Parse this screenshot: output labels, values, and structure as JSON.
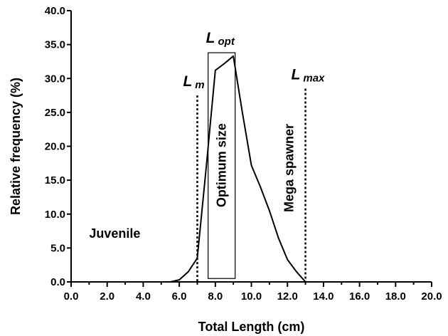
{
  "chart_data": {
    "type": "line",
    "xlabel": "Total Length (cm)",
    "ylabel": "Relative frequency (%)",
    "xlim": [
      0,
      20
    ],
    "ylim": [
      0,
      40
    ],
    "x_ticks": [
      "0.0",
      "2.0",
      "4.0",
      "6.0",
      "8.0",
      "10.0",
      "12.0",
      "14.0",
      "16.0",
      "18.0",
      "20.0"
    ],
    "y_ticks": [
      "0.0",
      "5.0",
      "10.0",
      "15.0",
      "20.0",
      "25.0",
      "30.0",
      "35.0",
      "40.0"
    ],
    "grid": false,
    "series": [
      {
        "x": [
          0,
          0.5,
          1,
          1.5,
          2,
          2.5,
          3,
          3.5,
          4,
          4.5,
          5,
          5.5,
          6,
          6.5,
          7,
          7.5,
          8,
          8.5,
          9,
          9.5,
          10,
          10.5,
          11,
          11.5,
          12,
          12.5,
          13,
          13.5,
          14,
          14.5,
          15,
          15.5,
          16,
          16.5,
          17,
          17.5,
          18,
          18.5,
          19,
          19.5,
          20
        ],
        "y": [
          0,
          0,
          0,
          0,
          0,
          0,
          0,
          0,
          0,
          0,
          0,
          0,
          0.3,
          1.5,
          3.5,
          17,
          31.2,
          32.2,
          33.3,
          25,
          17.2,
          14,
          10.5,
          6.5,
          3.3,
          1.5,
          0,
          0,
          0,
          0,
          0,
          0,
          0,
          0,
          0,
          0,
          0,
          0,
          0,
          0,
          0
        ]
      }
    ],
    "reference_lines": [
      {
        "x": 7.0,
        "y_top": 27.5,
        "label_main": "L",
        "label_sub": "m",
        "style": "dotted"
      },
      {
        "x": 13.0,
        "y_top": 28.5,
        "label_main": "L",
        "label_sub": "max",
        "style": "dotted"
      }
    ],
    "optimum_box": {
      "x0": 7.6,
      "x1": 9.1,
      "y0": 0.5,
      "y1": 33.8,
      "label_main": "L",
      "label_sub": "opt"
    },
    "region_labels": {
      "juvenile": {
        "text": "Juvenile",
        "x": 1.0,
        "y": 6.5
      },
      "optimum": {
        "text": "Optimum size",
        "x": 8.35,
        "y": 17.2
      },
      "mega": {
        "text": "Mega spawner",
        "x": 12.1,
        "y": 16.8
      }
    }
  }
}
